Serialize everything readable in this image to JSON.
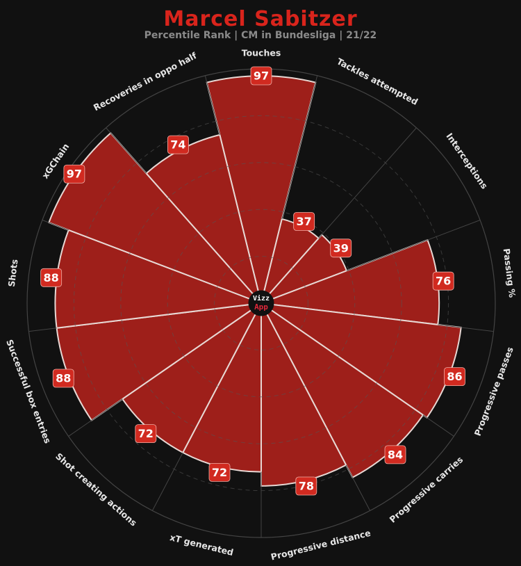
{
  "chart_data": {
    "type": "pizza",
    "title": "Marcel Sabitzer",
    "subtitle": "Percentile Rank | CM in Bundesliga | 21/22",
    "categories": [
      "Touches",
      "Tackles attempted",
      "Interceptions",
      "Passing %",
      "Progressive passes",
      "Progressive carries",
      "Progressive distance",
      "xT generated",
      "Shot creating actions",
      "Successful box entries",
      "Shots",
      "xGChain",
      "Recoveries in oppo half"
    ],
    "values": [
      97,
      37,
      39,
      76,
      86,
      84,
      78,
      72,
      72,
      88,
      88,
      97,
      74
    ],
    "ylim": [
      0,
      100
    ],
    "logo": {
      "line1": "Vizz",
      "line2": "App"
    },
    "colors": {
      "slice": "#9e1f1a",
      "badge": "#d12a20",
      "background": "#111111",
      "title": "#d9241c"
    }
  }
}
